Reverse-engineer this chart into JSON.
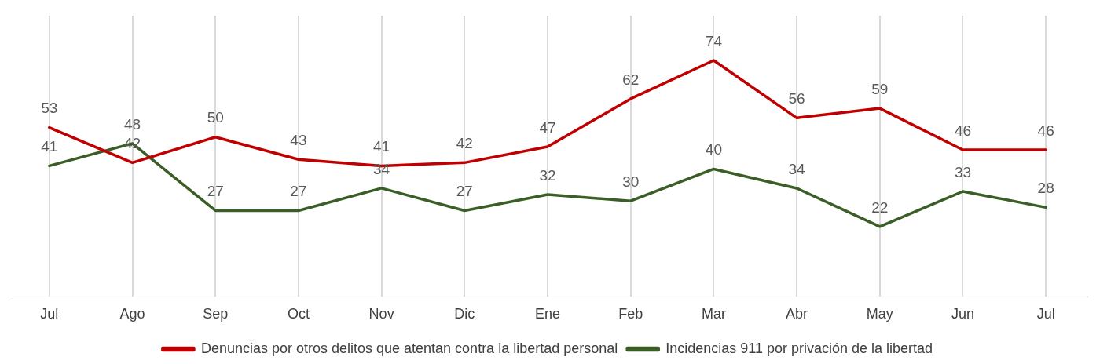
{
  "chart_data": {
    "type": "line",
    "categories": [
      "Jul",
      "Ago",
      "Sep",
      "Oct",
      "Nov",
      "Dic",
      "Ene",
      "Feb",
      "Mar",
      "Abr",
      "May",
      "Jun",
      "Jul"
    ],
    "series": [
      {
        "name": "Denuncias por otros delitos que atentan contra la libertad personal",
        "color": "#c00000",
        "values": [
          53,
          42,
          50,
          43,
          41,
          42,
          47,
          62,
          74,
          56,
          59,
          46,
          46
        ]
      },
      {
        "name": "Incidencias 911 por privación de la libertad",
        "color": "#3b5e27",
        "values": [
          41,
          48,
          27,
          27,
          34,
          27,
          32,
          30,
          40,
          34,
          22,
          33,
          28
        ]
      }
    ],
    "ylim": [
      0,
      88
    ],
    "data_labels": true,
    "grid": "x",
    "legend": "bottom",
    "marker": "none",
    "line_style": "solid"
  }
}
